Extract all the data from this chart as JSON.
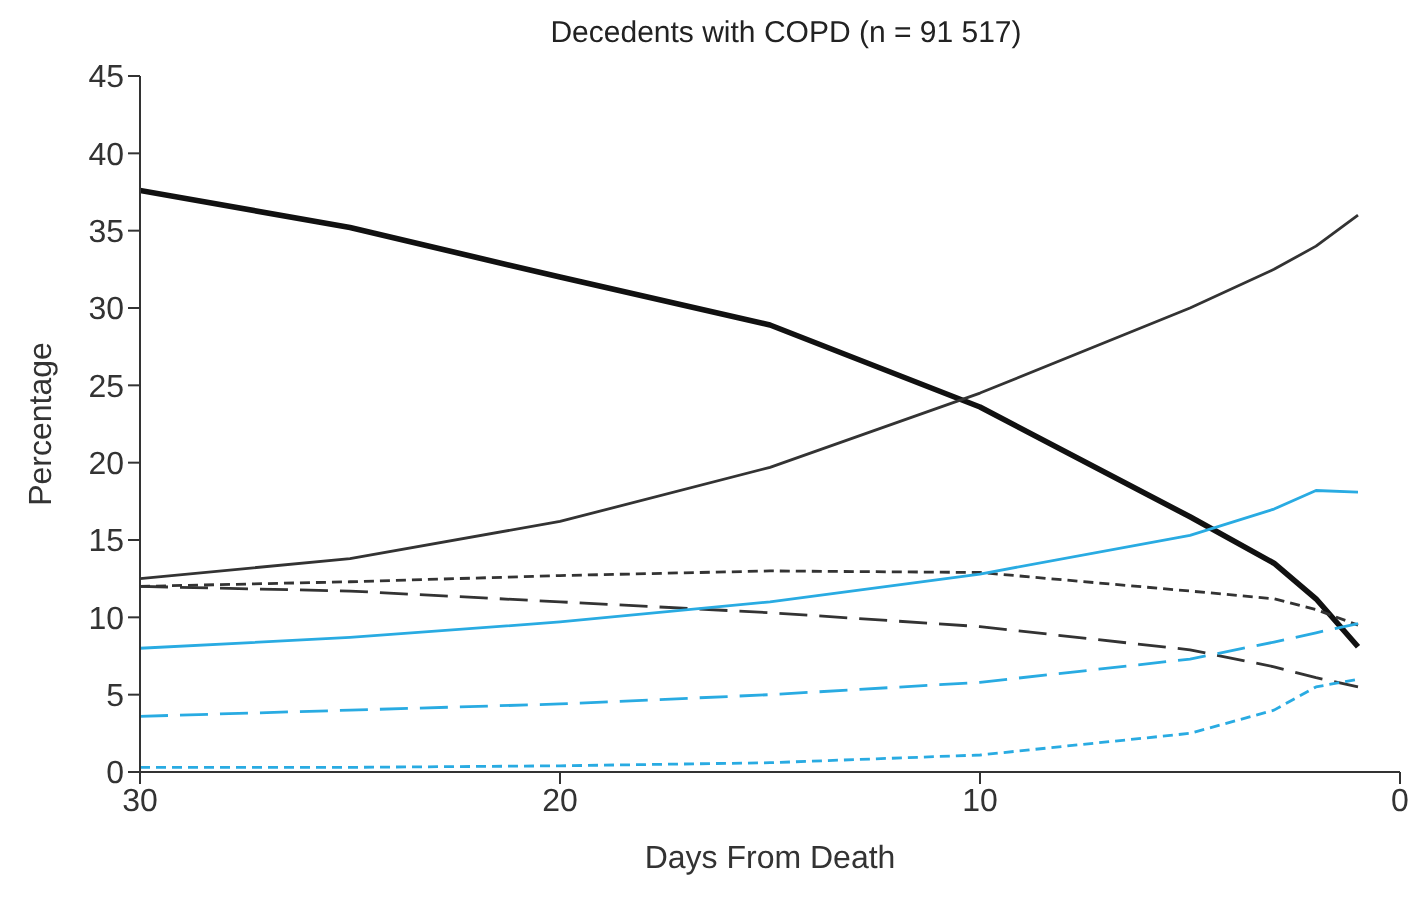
{
  "chart_data": {
    "type": "line",
    "title": "Decedents with COPD (n = 91 517)",
    "xlabel": "Days From Death",
    "ylabel": "Percentage",
    "x": [
      30,
      25,
      20,
      15,
      10,
      5,
      3,
      2,
      1
    ],
    "xlim": [
      30,
      0
    ],
    "xticks": [
      30,
      20,
      10,
      0
    ],
    "ylim": [
      0,
      45
    ],
    "yticks": [
      0,
      5,
      10,
      15,
      20,
      25,
      30,
      35,
      40,
      45
    ],
    "grid": false,
    "legend": false,
    "marker": "none",
    "series": [
      {
        "color": "#111111",
        "line_style": "solid",
        "values": [
          37.6,
          35.2,
          32,
          28.9,
          23.6,
          16.5,
          13.5,
          11.2,
          8.1
        ]
      },
      {
        "color": "#333333",
        "line_style": "solid",
        "values": [
          12.5,
          13.8,
          16.2,
          19.7,
          24.5,
          30,
          32.5,
          34,
          36
        ]
      },
      {
        "color": "#333333",
        "line_style": "dotted",
        "values": [
          12,
          12.3,
          12.7,
          13,
          12.9,
          11.7,
          11.2,
          10.5,
          9.5
        ]
      },
      {
        "color": "#333333",
        "line_style": "dashed",
        "values": [
          12,
          11.7,
          11,
          10.3,
          9.4,
          7.9,
          6.8,
          6.1,
          5.5
        ]
      },
      {
        "color": "#29abe2",
        "line_style": "solid",
        "values": [
          8,
          8.7,
          9.7,
          11,
          12.8,
          15.3,
          17,
          18.2,
          18.1
        ]
      },
      {
        "color": "#29abe2",
        "line_style": "dashed",
        "values": [
          3.6,
          4,
          4.4,
          5,
          5.8,
          7.3,
          8.4,
          9,
          9.6
        ]
      },
      {
        "color": "#29abe2",
        "line_style": "dotted",
        "values": [
          0.3,
          0.3,
          0.4,
          0.6,
          1.1,
          2.5,
          4,
          5.5,
          6
        ]
      }
    ]
  }
}
